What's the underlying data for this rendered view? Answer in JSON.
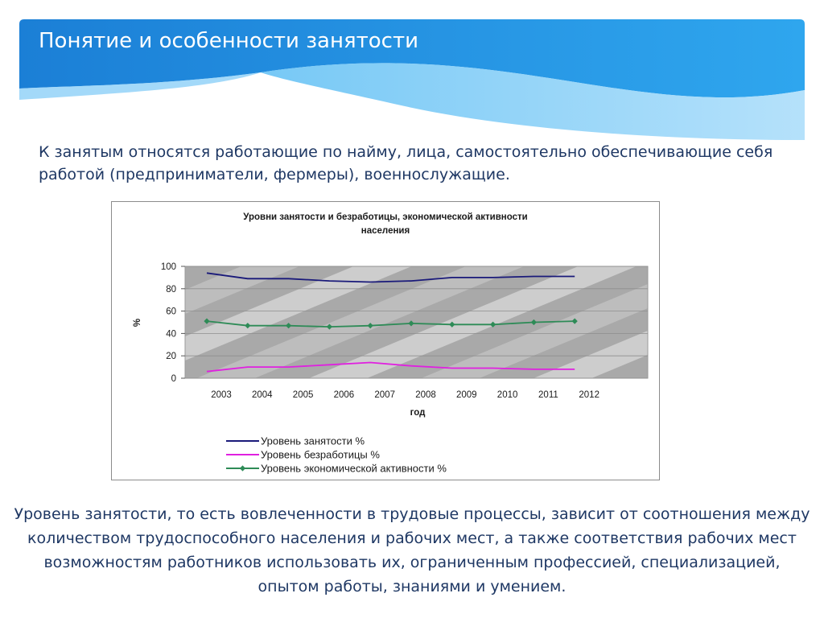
{
  "slide": {
    "title": "Понятие и особенности занятости",
    "intro": "К занятым относятся работающие по найму, лица, самостоятельно обеспечивающие себя работой (предприниматели, фермеры), военнослужащие.",
    "conclusion": "Уровень занятости, то есть вовлеченности в трудовые процессы, зависит от соотношения между количеством трудоспособного населения и рабочих мест, а также соответствия рабочих мест возможностям работников использовать их, ограниченным профессией, специализацией, опытом работы, знаниями и умением."
  },
  "colors": {
    "banner": "#1e88d9",
    "text": "#1f3864",
    "employment": "#1a1a7a",
    "unemployment": "#e020e0",
    "activity": "#2e8b57"
  },
  "chart_data": {
    "type": "line",
    "title_lines": [
      "Уровни занятости и безработицы, экономической активности",
      "населения"
    ],
    "xlabel": "год",
    "ylabel": "%",
    "ylim": [
      0,
      100
    ],
    "yticks": [
      0,
      20,
      40,
      60,
      80,
      100
    ],
    "categories": [
      "2003",
      "2004",
      "2005",
      "2006",
      "2007",
      "2008",
      "2009",
      "2010",
      "2011",
      "2012"
    ],
    "legend_position": "bottom",
    "series": [
      {
        "name": "Уровень занятости  %",
        "color": "#1a1a7a",
        "marker": "none",
        "values": [
          94,
          89,
          89,
          87,
          86,
          87,
          90,
          90,
          91,
          91
        ]
      },
      {
        "name": "Уровень безработицы  %",
        "color": "#e020e0",
        "marker": "none",
        "values": [
          6,
          10,
          10,
          12,
          14,
          11,
          9,
          9,
          8,
          8
        ]
      },
      {
        "name": "Уровень экономической активности   %",
        "color": "#2e8b57",
        "marker": "diamond",
        "values": [
          51,
          47,
          47,
          46,
          47,
          49,
          48,
          48,
          50,
          51
        ]
      }
    ]
  }
}
